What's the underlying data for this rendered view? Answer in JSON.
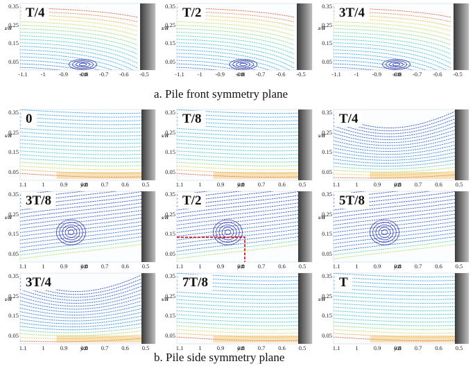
{
  "front": {
    "caption": "a. Pile front symmetry plane",
    "y_axis_label": "z/H",
    "y_ticks": [
      "0.35",
      "0.25",
      "0.15",
      "0.05"
    ],
    "x_ticks": [
      "-1.1",
      "-1",
      "-0.9",
      "-0.8",
      "-0.7",
      "-0.6",
      "-0.5"
    ],
    "x_axis_label": "x/D",
    "panels": [
      {
        "title": "T/4",
        "vortex_x": -0.81
      },
      {
        "title": "T/2",
        "vortex_x": -0.79
      },
      {
        "title": "3T/4",
        "vortex_x": -0.81
      }
    ]
  },
  "side": {
    "caption": "b. Pile side symmetry plane",
    "y_axis_label": "s/H",
    "y_ticks": [
      "0.35",
      "0.25",
      "0.15",
      "0.05"
    ],
    "x_ticks": [
      "1.1",
      "1",
      "0.9",
      "0.8",
      "0.7",
      "0.6",
      "0.5"
    ],
    "x_axis_label": "y/D",
    "panels": [
      {
        "title": "0",
        "mode": "flat"
      },
      {
        "title": "T/8",
        "mode": "flat"
      },
      {
        "title": "T/4",
        "mode": "bend"
      },
      {
        "title": "3T/8",
        "mode": "vortex"
      },
      {
        "title": "T/2",
        "mode": "vortex"
      },
      {
        "title": "5T/8",
        "mode": "vortex"
      },
      {
        "title": "3T/4",
        "mode": "bend"
      },
      {
        "title": "7T/8",
        "mode": "flat"
      },
      {
        "title": "T",
        "mode": "flat"
      }
    ]
  },
  "colors": {
    "wall_dark": "#3a3a3a",
    "wall_light": "#bdbdbd",
    "vortex_blue": "#1a1a9a",
    "marker_red": "#e00000"
  }
}
